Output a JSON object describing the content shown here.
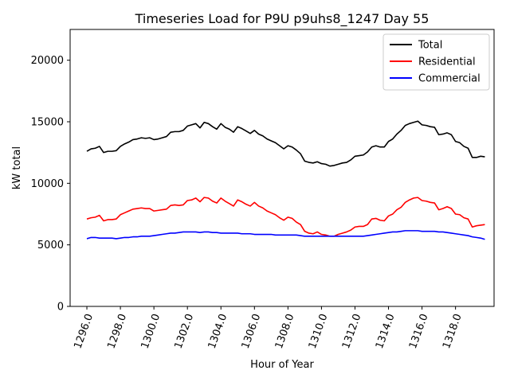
{
  "chart_data": {
    "type": "line",
    "title": "Timeseries Load for P9U p9uhs8_1247  Day 55",
    "xlabel": "Hour of Year",
    "ylabel": "kW total",
    "xlim": [
      1295.0,
      1320.3
    ],
    "ylim": [
      0,
      22500
    ],
    "xticks": [
      1296,
      1298,
      1300,
      1302,
      1304,
      1306,
      1308,
      1310,
      1312,
      1314,
      1316,
      1318
    ],
    "xtick_labels": [
      "1296.0",
      "1298.0",
      "1300.0",
      "1302.0",
      "1304.0",
      "1306.0",
      "1308.0",
      "1310.0",
      "1312.0",
      "1314.0",
      "1316.0",
      "1318.0"
    ],
    "yticks": [
      0,
      5000,
      10000,
      15000,
      20000
    ],
    "ytick_labels": [
      "0",
      "5000",
      "10000",
      "15000",
      "20000"
    ],
    "legend_position": "top-right",
    "x": [
      1296.0,
      1296.25,
      1296.5,
      1296.75,
      1297.0,
      1297.25,
      1297.5,
      1297.75,
      1298.0,
      1298.25,
      1298.5,
      1298.75,
      1299.0,
      1299.25,
      1299.5,
      1299.75,
      1300.0,
      1300.25,
      1300.5,
      1300.75,
      1301.0,
      1301.25,
      1301.5,
      1301.75,
      1302.0,
      1302.25,
      1302.5,
      1302.75,
      1303.0,
      1303.25,
      1303.5,
      1303.75,
      1304.0,
      1304.25,
      1304.5,
      1304.75,
      1305.0,
      1305.25,
      1305.5,
      1305.75,
      1306.0,
      1306.25,
      1306.5,
      1306.75,
      1307.0,
      1307.25,
      1307.5,
      1307.75,
      1308.0,
      1308.25,
      1308.5,
      1308.75,
      1309.0,
      1309.25,
      1309.5,
      1309.75,
      1310.0,
      1310.25,
      1310.5,
      1310.75,
      1311.0,
      1311.25,
      1311.5,
      1311.75,
      1312.0,
      1312.25,
      1312.5,
      1312.75,
      1313.0,
      1313.25,
      1313.5,
      1313.75,
      1314.0,
      1314.25,
      1314.5,
      1314.75,
      1315.0,
      1315.25,
      1315.5,
      1315.75,
      1316.0,
      1316.25,
      1316.5,
      1316.75,
      1317.0,
      1317.25,
      1317.5,
      1317.75,
      1318.0,
      1318.25,
      1318.5,
      1318.75,
      1319.0,
      1319.25,
      1319.5,
      1319.75
    ],
    "series": [
      {
        "name": "Total",
        "color": "#000000",
        "values": [
          12600,
          12800,
          12850,
          13000,
          12500,
          12600,
          12600,
          12650,
          13000,
          13200,
          13350,
          13550,
          13600,
          13700,
          13650,
          13700,
          13550,
          13600,
          13700,
          13800,
          14150,
          14200,
          14200,
          14300,
          14650,
          14750,
          14850,
          14500,
          14950,
          14850,
          14600,
          14400,
          14850,
          14550,
          14400,
          14150,
          14600,
          14450,
          14250,
          14050,
          14300,
          14000,
          13850,
          13600,
          13450,
          13300,
          13050,
          12800,
          13050,
          12950,
          12700,
          12400,
          11800,
          11700,
          11650,
          11750,
          11600,
          11550,
          11400,
          11450,
          11550,
          11650,
          11700,
          11900,
          12200,
          12250,
          12300,
          12550,
          12950,
          13050,
          12950,
          12950,
          13400,
          13600,
          14000,
          14300,
          14700,
          14850,
          14950,
          15050,
          14750,
          14700,
          14600,
          14550,
          13950,
          14000,
          14100,
          13950,
          13400,
          13300,
          13000,
          12850,
          12100,
          12100,
          12200,
          12150
        ]
      },
      {
        "name": "Residential",
        "color": "#ff0000",
        "values": [
          7100,
          7200,
          7250,
          7400,
          6950,
          7050,
          7050,
          7100,
          7450,
          7600,
          7750,
          7900,
          7950,
          8000,
          7950,
          7950,
          7750,
          7800,
          7850,
          7900,
          8200,
          8250,
          8200,
          8250,
          8600,
          8650,
          8800,
          8500,
          8850,
          8800,
          8550,
          8400,
          8800,
          8550,
          8350,
          8150,
          8650,
          8500,
          8300,
          8150,
          8450,
          8150,
          8000,
          7750,
          7600,
          7450,
          7200,
          7000,
          7250,
          7150,
          6850,
          6650,
          6100,
          5950,
          5900,
          6050,
          5850,
          5800,
          5700,
          5700,
          5850,
          5950,
          6050,
          6200,
          6450,
          6500,
          6500,
          6650,
          7100,
          7150,
          7000,
          6950,
          7350,
          7500,
          7850,
          8050,
          8450,
          8650,
          8800,
          8850,
          8600,
          8550,
          8450,
          8400,
          7850,
          7950,
          8100,
          7950,
          7500,
          7450,
          7200,
          7100,
          6450,
          6550,
          6600,
          6650
        ]
      },
      {
        "name": "Commercial",
        "color": "#0000ff",
        "values": [
          5500,
          5600,
          5600,
          5550,
          5550,
          5550,
          5550,
          5500,
          5550,
          5600,
          5600,
          5650,
          5650,
          5700,
          5700,
          5700,
          5750,
          5800,
          5850,
          5900,
          5950,
          5950,
          6000,
          6050,
          6050,
          6050,
          6050,
          6000,
          6050,
          6050,
          6000,
          6000,
          5950,
          5950,
          5950,
          5950,
          5950,
          5900,
          5900,
          5900,
          5850,
          5850,
          5850,
          5850,
          5850,
          5800,
          5800,
          5800,
          5800,
          5800,
          5800,
          5750,
          5700,
          5700,
          5700,
          5700,
          5700,
          5700,
          5700,
          5700,
          5700,
          5700,
          5700,
          5700,
          5700,
          5700,
          5700,
          5750,
          5800,
          5850,
          5900,
          5950,
          6000,
          6050,
          6050,
          6100,
          6150,
          6150,
          6150,
          6150,
          6100,
          6100,
          6100,
          6100,
          6050,
          6050,
          6000,
          5950,
          5900,
          5850,
          5800,
          5750,
          5650,
          5600,
          5550,
          5450
        ]
      }
    ]
  }
}
